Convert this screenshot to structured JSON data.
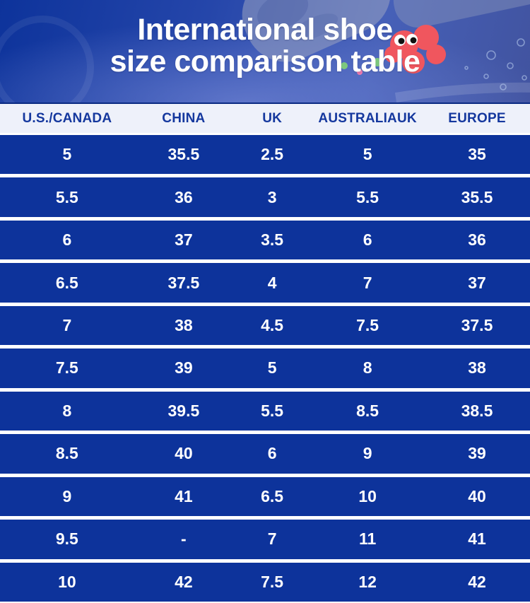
{
  "hero": {
    "title_line1": "International shoe",
    "title_line2": "size comparison table"
  },
  "chart_data": {
    "type": "table",
    "title": "International shoe size comparison table",
    "columns": [
      "U.S./CANADA",
      "CHINA",
      "UK",
      "AUSTRALIAUK",
      "EUROPE"
    ],
    "rows": [
      [
        "5",
        "35.5",
        "2.5",
        "5",
        "35"
      ],
      [
        "5.5",
        "36",
        "3",
        "5.5",
        "35.5"
      ],
      [
        "6",
        "37",
        "3.5",
        "6",
        "36"
      ],
      [
        "6.5",
        "37.5",
        "4",
        "7",
        "37"
      ],
      [
        "7",
        "38",
        "4.5",
        "7.5",
        "37.5"
      ],
      [
        "7.5",
        "39",
        "5",
        "8",
        "38"
      ],
      [
        "8",
        "39.5",
        "5.5",
        "8.5",
        "38.5"
      ],
      [
        "8.5",
        "40",
        "6",
        "9",
        "39"
      ],
      [
        "9",
        "41",
        "6.5",
        "10",
        "40"
      ],
      [
        "9.5",
        "-",
        "7",
        "11",
        "41"
      ],
      [
        "10",
        "42",
        "7.5",
        "12",
        "42"
      ]
    ]
  },
  "icons": {
    "shoe_sole": "shoe-sole-photo",
    "mascot": "red-crab-mascot",
    "eyes": "googly-eyes",
    "dots": "confetti-dots",
    "bubbles": "water-bubbles"
  },
  "colors": {
    "row_blue": "#0d339b",
    "header_bg": "#eef1fa",
    "header_text": "#15389e",
    "hero_gradient_dark": "#0d339b",
    "hero_gradient_light": "#4660b8",
    "title_text": "#ffffff",
    "mascot_red": "#f0565e",
    "dot_green": "#7dc87e",
    "dot_pink": "#e879ae",
    "separator_white": "#ffffff"
  }
}
